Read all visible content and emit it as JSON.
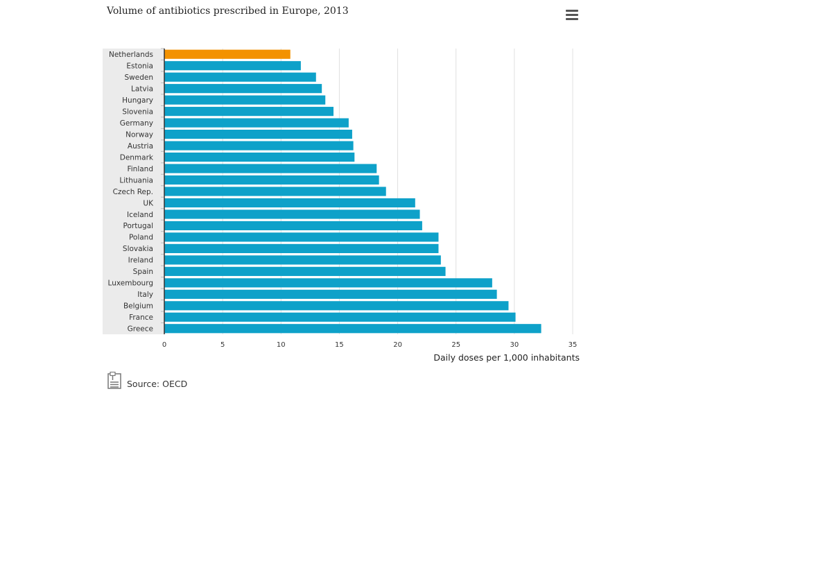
{
  "chart_data": {
    "type": "bar",
    "orientation": "horizontal",
    "title": "Volume of antibiotics prescribed in Europe, 2013",
    "xlabel": "Daily doses per 1,000 inhabitants",
    "ylabel": "",
    "xlim": [
      0,
      35
    ],
    "xticks": [
      "0",
      "5",
      "10",
      "15",
      "20",
      "25",
      "30",
      "35"
    ],
    "grid": true,
    "highlight_category": "Netherlands",
    "colors": {
      "bar": "#0ea1c9",
      "highlight": "#f39200",
      "grid": "#e0e0e0",
      "label_band": "#ebebeb",
      "axis": "#333333"
    },
    "categories": [
      "Netherlands",
      "Estonia",
      "Sweden",
      "Latvia",
      "Hungary",
      "Slovenia",
      "Germany",
      "Norway",
      "Austria",
      "Denmark",
      "Finland",
      "Lithuania",
      "Czech Rep.",
      "UK",
      "Iceland",
      "Portugal",
      "Poland",
      "Slovakia",
      "Ireland",
      "Spain",
      "Luxembourg",
      "Italy",
      "Belgium",
      "France",
      "Greece"
    ],
    "values": [
      10.8,
      11.7,
      13.0,
      13.5,
      13.8,
      14.5,
      15.8,
      16.1,
      16.2,
      16.3,
      18.2,
      18.4,
      19.0,
      21.5,
      21.9,
      22.1,
      23.5,
      23.5,
      23.7,
      24.1,
      28.1,
      28.5,
      29.5,
      30.1,
      32.3
    ]
  },
  "toolbar": {
    "menu_icon": "hamburger-menu-icon"
  },
  "source": {
    "icon": "document-source-icon",
    "text": "Source: OECD"
  }
}
